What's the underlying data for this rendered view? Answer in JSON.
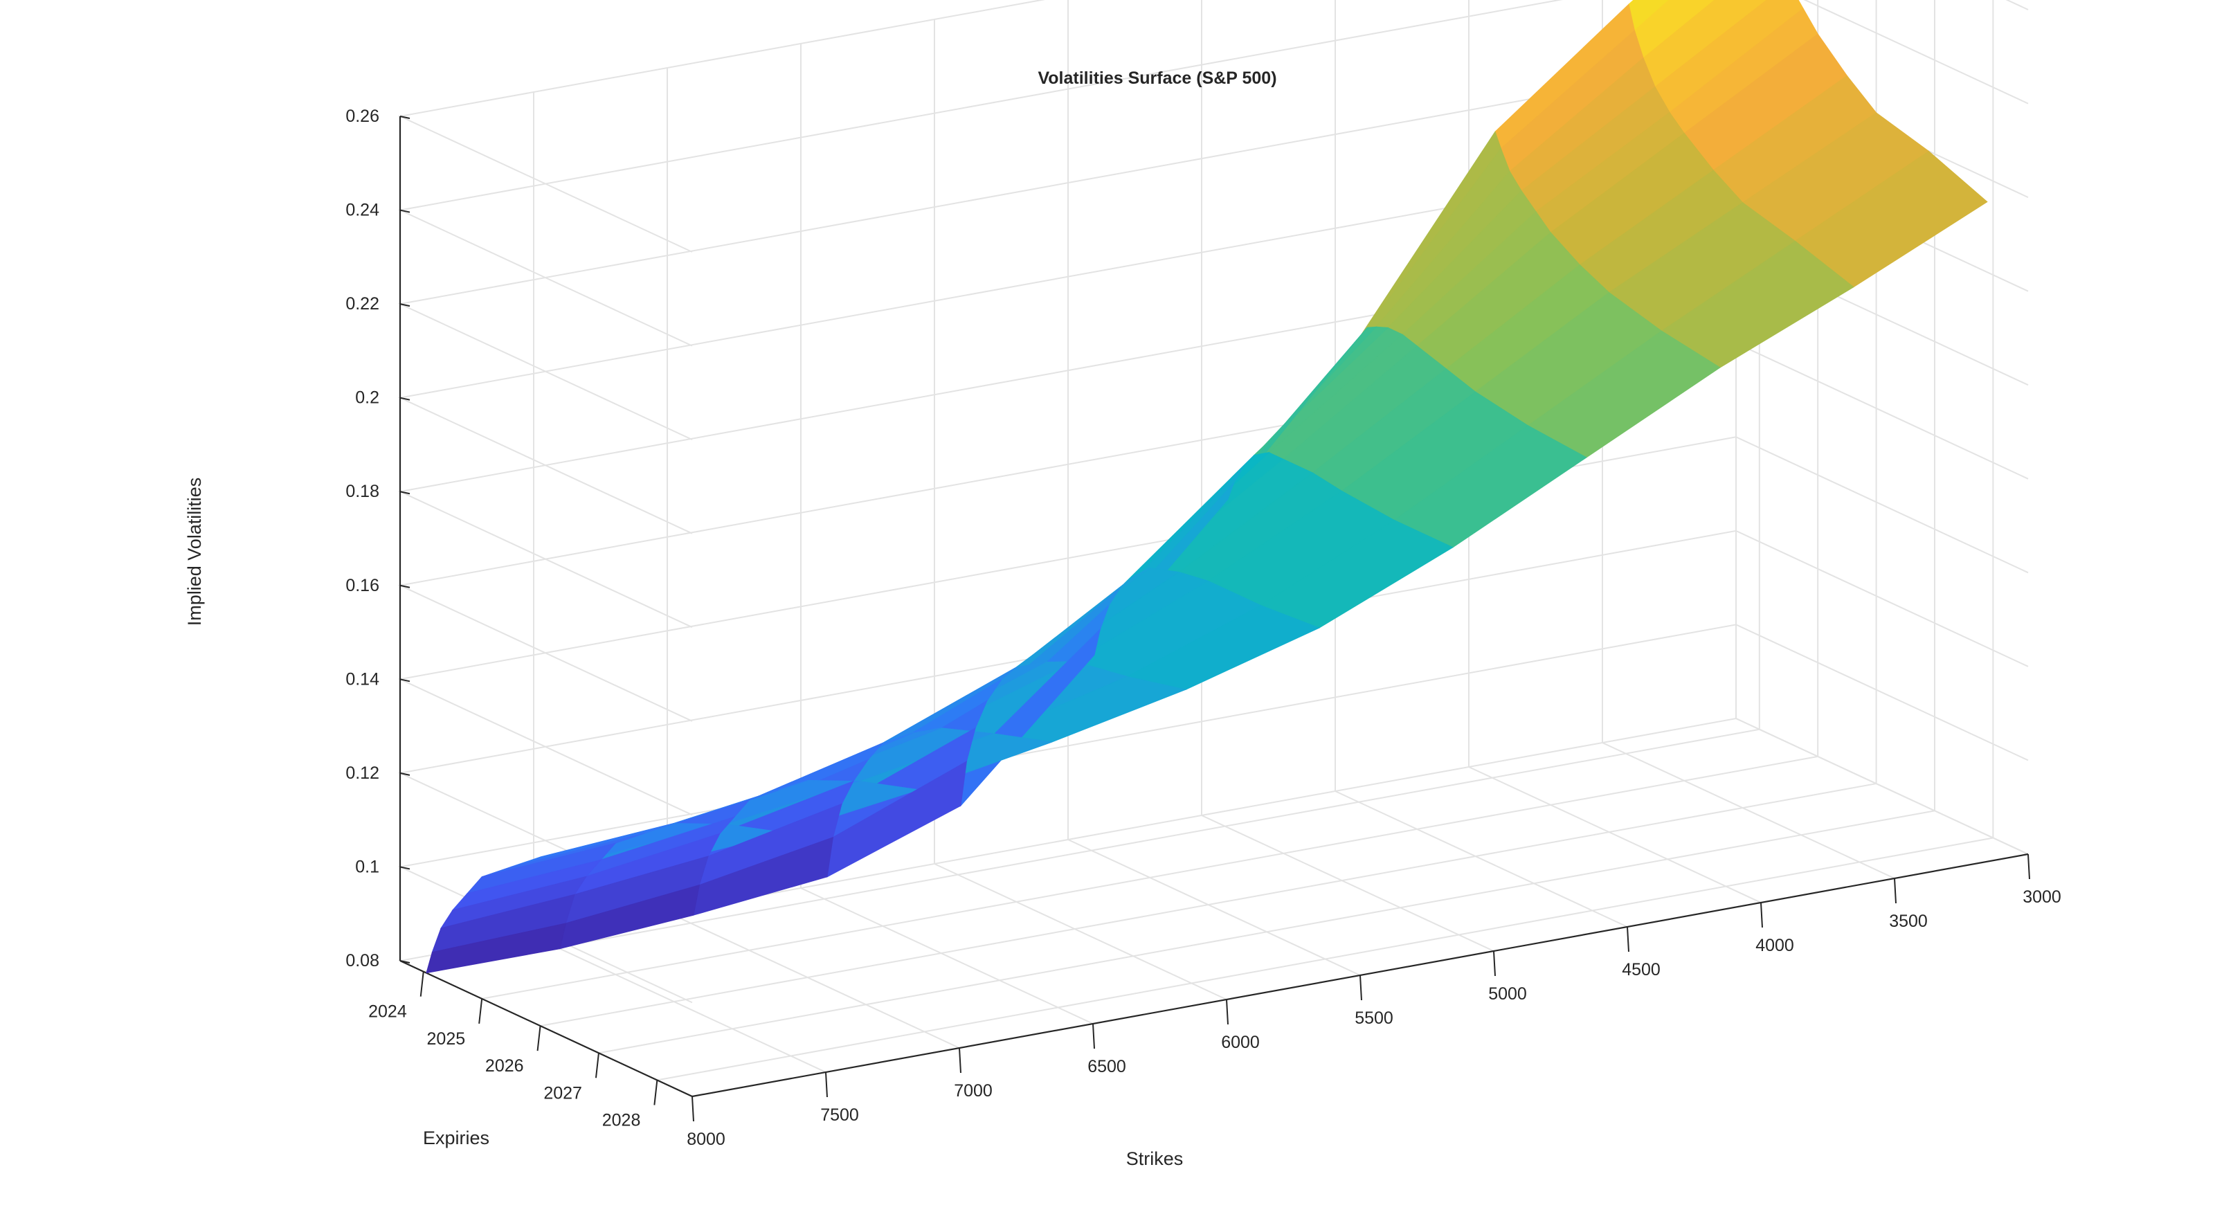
{
  "chart_data": {
    "type": "surface",
    "title": "Volatilities Surface (S&P 500)",
    "xlabel": "Strikes",
    "ylabel": "Expiries",
    "zlabel": "Implied Volatilities",
    "x_ticks": [
      8000,
      7500,
      7000,
      6500,
      6000,
      5500,
      5000,
      4500,
      4000,
      3500,
      3000
    ],
    "y_ticks": [
      2024,
      2025,
      2026,
      2027,
      2028
    ],
    "z_ticks": [
      0.08,
      0.1,
      0.12,
      0.14,
      0.16,
      0.18,
      0.2,
      0.22,
      0.24,
      0.26
    ],
    "xlim": [
      3000,
      8000
    ],
    "ylim": [
      2023.6,
      2028.6
    ],
    "zlim": [
      0.08,
      0.26
    ],
    "grid": true,
    "colormap": [
      "#3e26a8",
      "#4352ef",
      "#2e7af6",
      "#1aa2d9",
      "#0ab6c4",
      "#3cbf8f",
      "#86c159",
      "#c7b63b",
      "#f5ae3a",
      "#f9d32a",
      "#f0ed1e"
    ],
    "strikes": [
      3000,
      3500,
      4000,
      4500,
      5000,
      5500,
      6000,
      6500,
      7000,
      7500,
      8000
    ],
    "expiries": [
      2024.05,
      2024.15,
      2024.3,
      2024.5,
      2024.75,
      2025.0,
      2025.5,
      2026.0,
      2026.9,
      2027.9
    ],
    "vol_surface": [
      [
        0.26,
        0.255,
        0.248,
        0.242,
        0.238,
        0.234,
        0.228,
        0.223,
        0.22,
        0.215
      ],
      [
        0.24,
        0.235,
        0.23,
        0.225,
        0.221,
        0.218,
        0.213,
        0.209,
        0.206,
        0.202
      ],
      [
        0.218,
        0.215,
        0.211,
        0.208,
        0.205,
        0.202,
        0.198,
        0.195,
        0.192,
        0.19
      ],
      [
        0.18,
        0.182,
        0.183,
        0.184,
        0.184,
        0.183,
        0.181,
        0.179,
        0.177,
        0.176
      ],
      [
        0.15,
        0.154,
        0.158,
        0.162,
        0.164,
        0.164,
        0.164,
        0.163,
        0.162,
        0.162
      ],
      [
        0.122,
        0.128,
        0.134,
        0.139,
        0.143,
        0.146,
        0.148,
        0.149,
        0.149,
        0.15
      ],
      [
        0.095,
        0.105,
        0.113,
        0.12,
        0.126,
        0.13,
        0.134,
        0.137,
        0.139,
        0.142
      ],
      [
        0.085,
        0.094,
        0.102,
        0.108,
        0.114,
        0.119,
        0.124,
        0.128,
        0.132,
        0.136
      ],
      [
        0.082,
        0.089,
        0.096,
        0.102,
        0.107,
        0.112,
        0.117,
        0.122,
        0.127,
        0.131
      ],
      [
        0.08,
        0.086,
        0.093,
        0.098,
        0.103,
        0.108,
        0.113,
        0.118,
        0.123,
        0.127
      ],
      [
        0.08,
        0.085,
        0.091,
        0.096,
        0.101,
        0.106,
        0.111,
        0.116,
        0.121,
        0.125
      ]
    ]
  }
}
